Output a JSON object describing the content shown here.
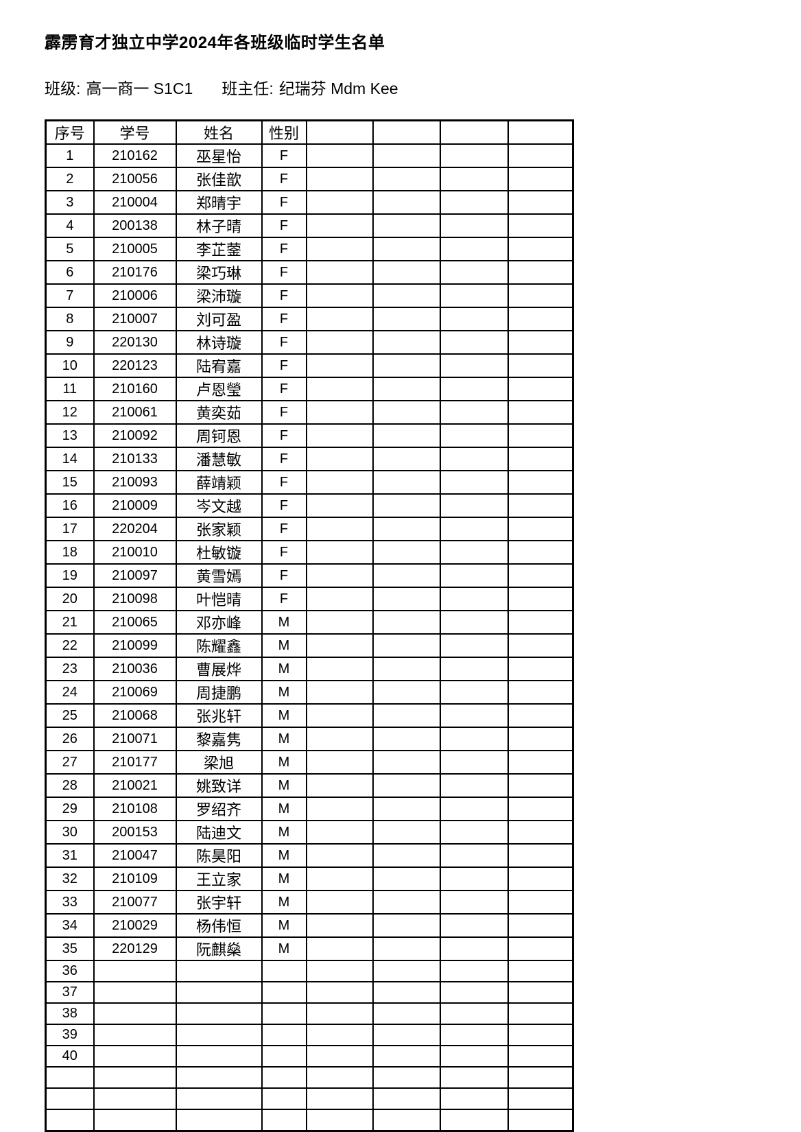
{
  "header": {
    "title": "霹雳育才独立中学2024年各班级临时学生名单",
    "class_label": "班级:",
    "class_value": "高一商一 S1C1",
    "teacher_label": "班主任:",
    "teacher_value": "纪瑞芬 Mdm Kee"
  },
  "table": {
    "headers": [
      "序号",
      "学号",
      "姓名",
      "性别",
      "",
      "",
      "",
      ""
    ],
    "rows": [
      [
        "1",
        "210162",
        "巫星怡",
        "F"
      ],
      [
        "2",
        "210056",
        "张佳歆",
        "F"
      ],
      [
        "3",
        "210004",
        "郑晴宇",
        "F"
      ],
      [
        "4",
        "200138",
        "林子晴",
        "F"
      ],
      [
        "5",
        "210005",
        "李芷蓥",
        "F"
      ],
      [
        "6",
        "210176",
        "梁巧琳",
        "F"
      ],
      [
        "7",
        "210006",
        "梁沛璇",
        "F"
      ],
      [
        "8",
        "210007",
        "刘可盈",
        "F"
      ],
      [
        "9",
        "220130",
        "林诗璇",
        "F"
      ],
      [
        "10",
        "220123",
        "陆宥嘉",
        "F"
      ],
      [
        "11",
        "210160",
        "卢恩瑩",
        "F"
      ],
      [
        "12",
        "210061",
        "黄奕茹",
        "F"
      ],
      [
        "13",
        "210092",
        "周钶恩",
        "F"
      ],
      [
        "14",
        "210133",
        "潘慧敏",
        "F"
      ],
      [
        "15",
        "210093",
        "薛靖颖",
        "F"
      ],
      [
        "16",
        "210009",
        "岑文越",
        "F"
      ],
      [
        "17",
        "220204",
        "张家颖",
        "F"
      ],
      [
        "18",
        "210010",
        "杜敏镟",
        "F"
      ],
      [
        "19",
        "210097",
        "黄雪嫣",
        "F"
      ],
      [
        "20",
        "210098",
        "叶恺晴",
        "F"
      ],
      [
        "21",
        "210065",
        "邓亦峰",
        "M"
      ],
      [
        "22",
        "210099",
        "陈耀鑫",
        "M"
      ],
      [
        "23",
        "210036",
        "曹展烨",
        "M"
      ],
      [
        "24",
        "210069",
        "周捷鹏",
        "M"
      ],
      [
        "25",
        "210068",
        "张兆轩",
        "M"
      ],
      [
        "26",
        "210071",
        "黎嘉隽",
        "M"
      ],
      [
        "27",
        "210177",
        "梁旭",
        "M"
      ],
      [
        "28",
        "210021",
        "姚致详",
        "M"
      ],
      [
        "29",
        "210108",
        "罗绍齐",
        "M"
      ],
      [
        "30",
        "200153",
        "陆迪文",
        "M"
      ],
      [
        "31",
        "210047",
        "陈昊阳",
        "M"
      ],
      [
        "32",
        "210109",
        "王立家",
        "M"
      ],
      [
        "33",
        "210077",
        "张宇轩",
        "M"
      ],
      [
        "34",
        "210029",
        "杨伟恒",
        "M"
      ],
      [
        "35",
        "220129",
        "阮麒燊",
        "M"
      ],
      [
        "36",
        "",
        "",
        ""
      ],
      [
        "37",
        "",
        "",
        ""
      ],
      [
        "38",
        "",
        "",
        ""
      ],
      [
        "39",
        "",
        "",
        ""
      ],
      [
        "40",
        "",
        "",
        ""
      ],
      [
        "",
        "",
        "",
        ""
      ],
      [
        "",
        "",
        "",
        ""
      ],
      [
        "",
        "",
        "",
        ""
      ]
    ]
  }
}
